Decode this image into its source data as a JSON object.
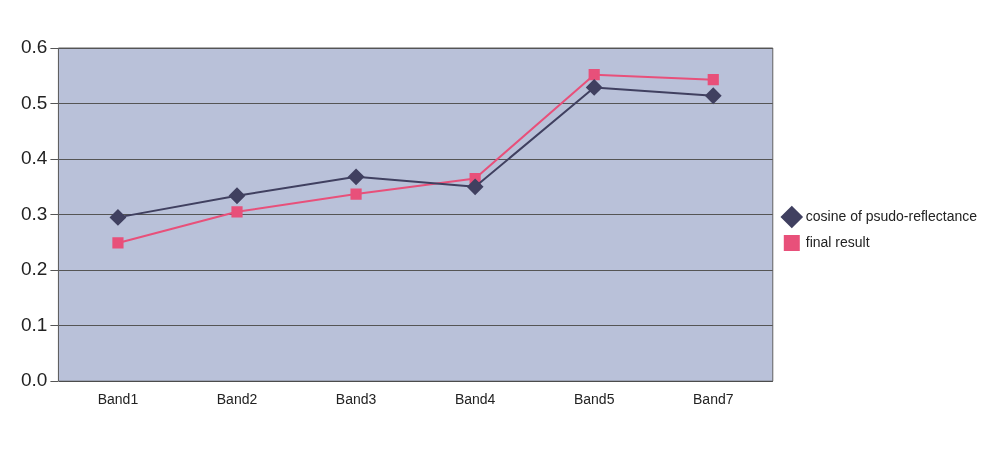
{
  "chart_data": {
    "type": "line",
    "categories": [
      "Band1",
      "Band2",
      "Band3",
      "Band4",
      "Band5",
      "Band7"
    ],
    "series": [
      {
        "name": "cosine of psudo-reflectance",
        "color": "#404060",
        "marker": "diamond",
        "values": [
          0.295,
          0.334,
          0.368,
          0.35,
          0.529,
          0.514
        ]
      },
      {
        "name": "final result",
        "color": "#e8507a",
        "marker": "square",
        "values": [
          0.249,
          0.305,
          0.337,
          0.365,
          0.552,
          0.543
        ]
      }
    ],
    "ylim": [
      0,
      0.6
    ],
    "yticks": [
      {
        "value": 0,
        "label": "0.0"
      },
      0.1,
      0.2,
      0.3,
      0.4,
      0.5,
      0.6
    ],
    "grid": "y",
    "legend": "right",
    "line_style": "solid"
  }
}
